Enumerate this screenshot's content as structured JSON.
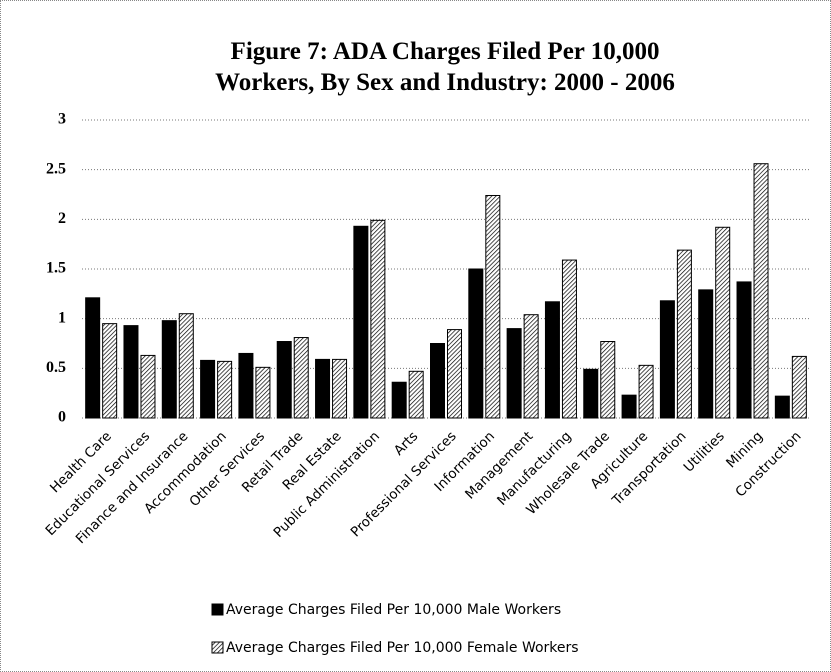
{
  "chart_data": {
    "type": "bar",
    "title": "Figure 7: ADA Charges Filed Per 10,000 Workers, By Sex and Industry: 2000 - 2006",
    "categories": [
      "Health Care",
      "Educational Services",
      "Finance and Insurance",
      "Accommodation",
      "Other Services",
      "Retail Trade",
      "Real Estate",
      "Public Administration",
      "Arts",
      "Professional Services",
      "Information",
      "Management",
      "Manufacturing",
      "Wholesale Trade",
      "Agriculture",
      "Transportation",
      "Utilities",
      "Mining",
      "Construction"
    ],
    "series": [
      {
        "name": "Average Charges Filed Per 10,000 Male Workers",
        "color": "#000000",
        "fill": "solid",
        "values": [
          1.21,
          0.93,
          0.98,
          0.58,
          0.65,
          0.77,
          0.59,
          1.93,
          0.36,
          0.75,
          1.5,
          0.9,
          1.17,
          0.49,
          0.23,
          1.18,
          1.29,
          1.37,
          0.22
        ]
      },
      {
        "name": "Average Charges Filed Per 10,000 Female Workers",
        "color": "#000000",
        "fill": "hatch",
        "values": [
          0.95,
          0.63,
          1.05,
          0.57,
          0.51,
          0.81,
          0.59,
          1.99,
          0.47,
          0.89,
          2.24,
          1.04,
          1.59,
          0.77,
          0.53,
          1.69,
          1.92,
          2.56,
          0.62
        ]
      }
    ],
    "ylim": [
      0,
      3
    ],
    "yticks": [
      0,
      0.5,
      1,
      1.5,
      2,
      2.5,
      3
    ],
    "grid": true,
    "legend": "bottom"
  }
}
